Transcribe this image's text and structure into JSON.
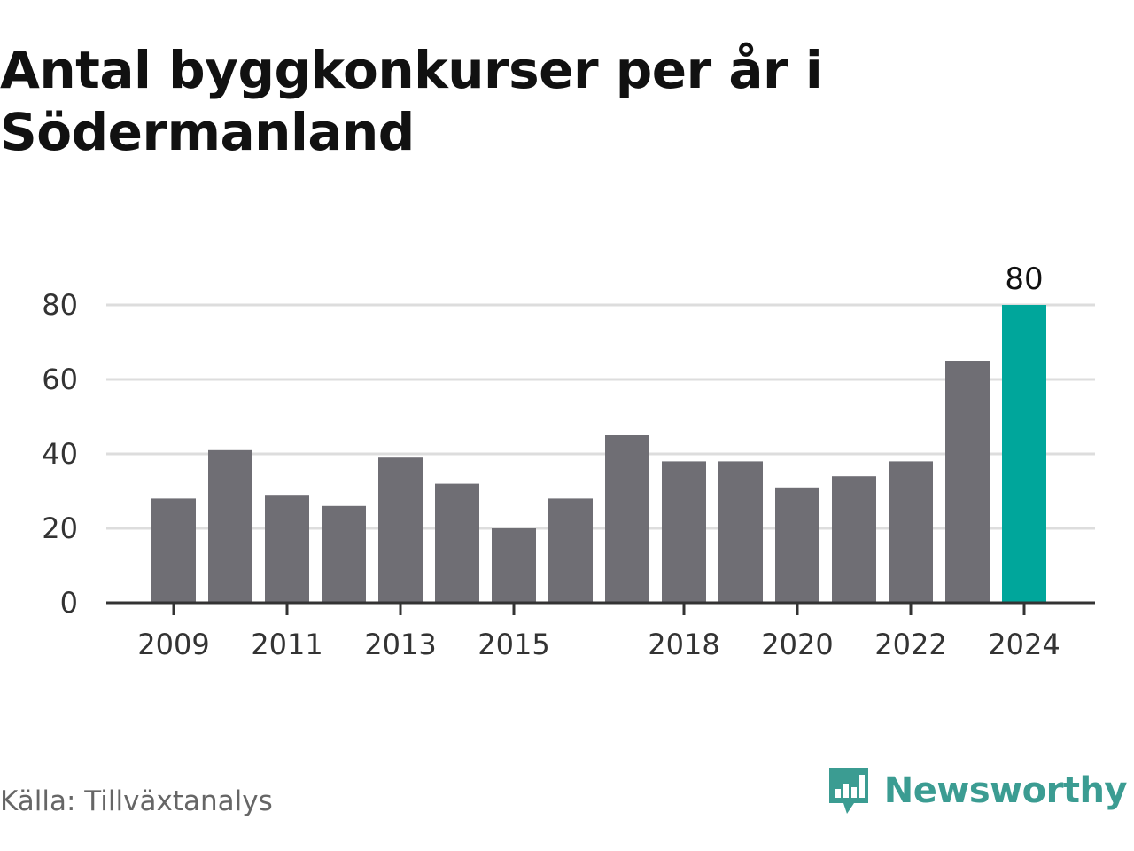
{
  "title": "Antal byggkonkurser per år i Södermanland",
  "source": "Källa: Tillväxtanalys",
  "brand": {
    "name": "Newsworthy",
    "icon": "newsworthy-logo-icon",
    "color": "#3b9c92"
  },
  "colors": {
    "bar": "#6f6e74",
    "highlight": "#00a69b",
    "grid": "#dddddd",
    "axis": "#333333"
  },
  "chart_data": {
    "type": "bar",
    "categories": [
      "2009",
      "2010",
      "2011",
      "2012",
      "2013",
      "2014",
      "2015",
      "2016",
      "2017",
      "2018",
      "2019",
      "2020",
      "2021",
      "2022",
      "2023",
      "2024"
    ],
    "values": [
      28,
      41,
      29,
      26,
      39,
      32,
      20,
      28,
      45,
      38,
      38,
      31,
      34,
      38,
      65,
      80
    ],
    "tick_labels": [
      "2009",
      "2011",
      "2013",
      "2015",
      "2018",
      "2020",
      "2022",
      "2024"
    ],
    "y_ticks": [
      0,
      20,
      40,
      60,
      80
    ],
    "ylim": [
      0,
      80
    ],
    "highlight_index": 15,
    "data_label": "80",
    "grid": true
  }
}
